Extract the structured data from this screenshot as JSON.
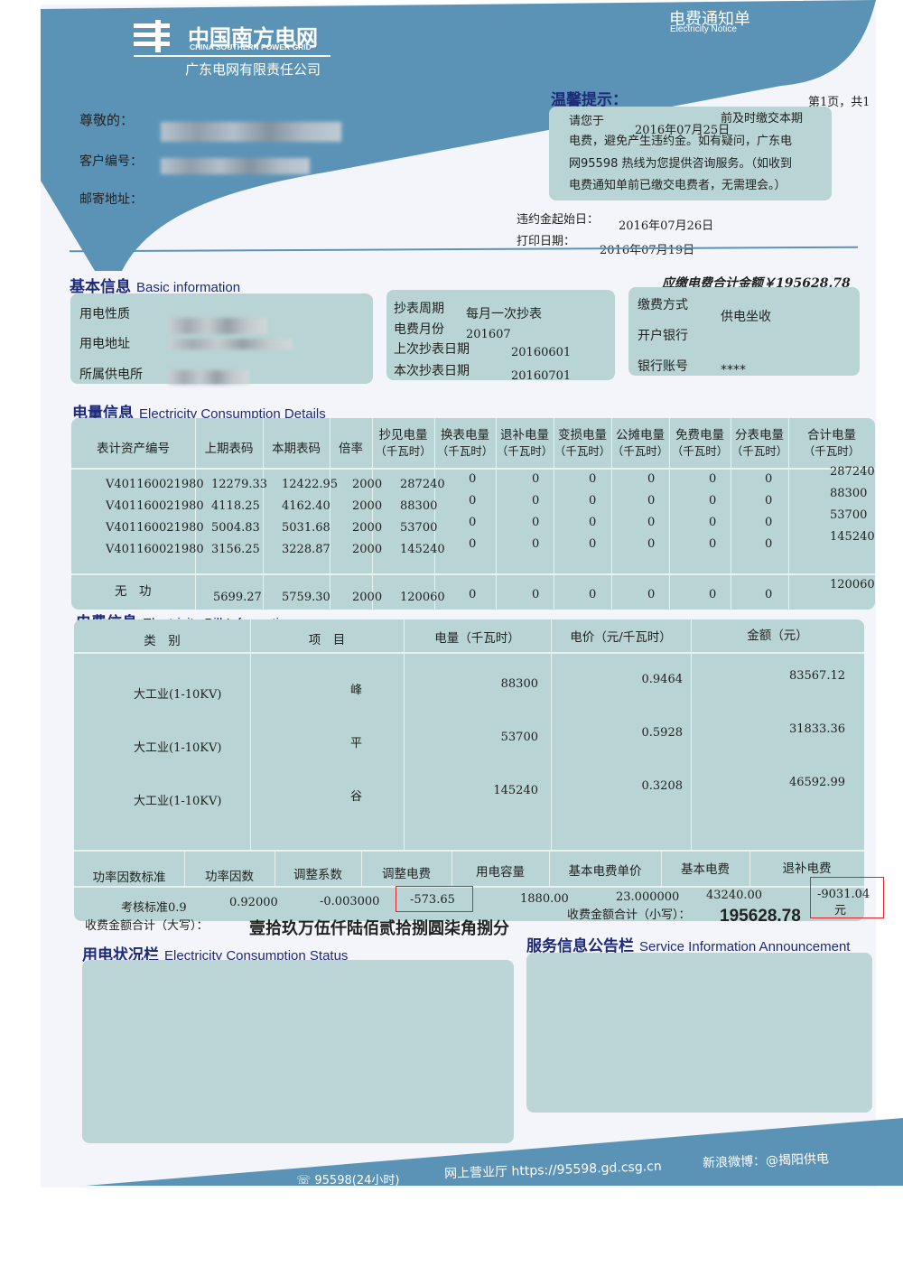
{
  "header": {
    "logo_cn": "中国南方电网",
    "logo_en": "CHINA SOUTHERN POWER GRID",
    "company": "广东电网有限责任公司",
    "doc_title_cn": "电费通知单",
    "doc_title_en": "Electricity  Notice",
    "brand_color": "#5b93b6"
  },
  "customer": {
    "dear_label": "尊敬的：",
    "id_label": "客户编号：",
    "address_label": "邮寄地址："
  },
  "notice": {
    "title": "温馨提示：",
    "page": "第1页，共1",
    "line1_a": "请您于",
    "due_date": "2016年07月25日",
    "line1_b": "前及时缴交本期",
    "line2": "电费，避免产生违约金。如有疑问，广东电",
    "line3": "网95598 热线为您提供咨询服务。（如收到",
    "line4": "电费通知单前已缴交电费者，无需理会。）",
    "penalty_label": "违约金起始日：",
    "penalty_date": "2016年07月26日",
    "print_label": "打印日期：",
    "print_date": "2016年07月19日"
  },
  "basic": {
    "title": "基本信息",
    "title_en": "Basic information",
    "total_due": "应缴电费合计金额￥195628.78",
    "usage_type_label": "用电性质",
    "usage_addr_label": "用电地址",
    "station_label": "所属供电所",
    "cycle_label": "抄表周期",
    "cycle": "每月一次抄表",
    "month_label": "电费月份",
    "month": "201607",
    "last_read_label": "上次抄表日期",
    "last_read": "20160601",
    "this_read_label": "本次抄表日期",
    "this_read": "20160701",
    "pay_method_label": "缴费方式",
    "pay_method": "供电坐收",
    "bank_label": "开户银行",
    "account_label": "银行账号",
    "account": "****"
  },
  "consumption": {
    "title": "电量信息",
    "title_en": "Electricity Consumption Details",
    "headers": [
      [
        "表计资产编号",
        ""
      ],
      [
        "上期表码",
        ""
      ],
      [
        "本期表码",
        ""
      ],
      [
        "倍率",
        ""
      ],
      [
        "抄见电量",
        "（千瓦时）"
      ],
      [
        "换表电量",
        "（千瓦时）"
      ],
      [
        "退补电量",
        "（千瓦时）"
      ],
      [
        "变损电量",
        "（千瓦时）"
      ],
      [
        "公摊电量",
        "（千瓦时）"
      ],
      [
        "免费电量",
        "（千瓦时）"
      ],
      [
        "分表电量",
        "（千瓦时）"
      ],
      [
        "合计电量",
        "（千瓦时）"
      ]
    ],
    "rows": [
      [
        "V401160021980",
        "12279.33",
        "12422.95",
        "2000",
        "287240",
        "0",
        "0",
        "0",
        "0",
        "0",
        "0",
        "287240"
      ],
      [
        "V401160021980",
        "4118.25",
        "4162.40",
        "2000",
        "88300",
        "0",
        "0",
        "0",
        "0",
        "0",
        "0",
        "88300"
      ],
      [
        "V401160021980",
        "5004.83",
        "5031.68",
        "2000",
        "53700",
        "0",
        "0",
        "0",
        "0",
        "0",
        "0",
        "53700"
      ],
      [
        "V401160021980",
        "3156.25",
        "3228.87",
        "2000",
        "145240",
        "0",
        "0",
        "0",
        "0",
        "0",
        "0",
        "145240"
      ]
    ],
    "reactive": [
      "无　功",
      "5699.27",
      "5759.30",
      "2000",
      "120060",
      "0",
      "0",
      "0",
      "0",
      "0",
      "0",
      "120060"
    ]
  },
  "bill": {
    "title": "电费信息",
    "title_en": "Electricity Bill Information",
    "headers": [
      "类　别",
      "项　目",
      "电量（千瓦时）",
      "电价（元/千瓦时）",
      "金额（元）"
    ],
    "rows": [
      [
        "大工业(1-10KV)",
        "峰",
        "88300",
        "0.9464",
        "83567.12"
      ],
      [
        "大工业(1-10KV)",
        "平",
        "53700",
        "0.5928",
        "31833.36"
      ],
      [
        "大工业(1-10KV)",
        "谷",
        "145240",
        "0.3208",
        "46592.99"
      ]
    ],
    "extra_headers": [
      "功率因数标准",
      "功率因数",
      "调整系数",
      "调整电费",
      "用电容量",
      "基本电费单价",
      "基本电费",
      "退补电费"
    ],
    "extra_values": [
      "考核标准0.9",
      "0.92000",
      "-0.003000",
      "-573.65",
      "1880.00",
      "23.000000",
      "43240.00",
      "-9031.04"
    ],
    "unit": "元",
    "total_words_label": "收费金额合计（大写）：",
    "total_words": "壹拾玖万伍仟陆佰贰拾捌圆柒角捌分",
    "total_num_label": "收费金额合计（小写）：",
    "total_num": "195628.78"
  },
  "status": {
    "title": "用电状况栏",
    "title_en": "Electricity Consumption Status"
  },
  "service": {
    "title": "服务信息公告栏",
    "title_en": "Service Information Announcement"
  },
  "footer": {
    "hotline": "95598(24小时)",
    "website": "网上营业厅 https://95598.gd.csg.cn",
    "weibo": "新浪微博：@揭阳供电"
  }
}
